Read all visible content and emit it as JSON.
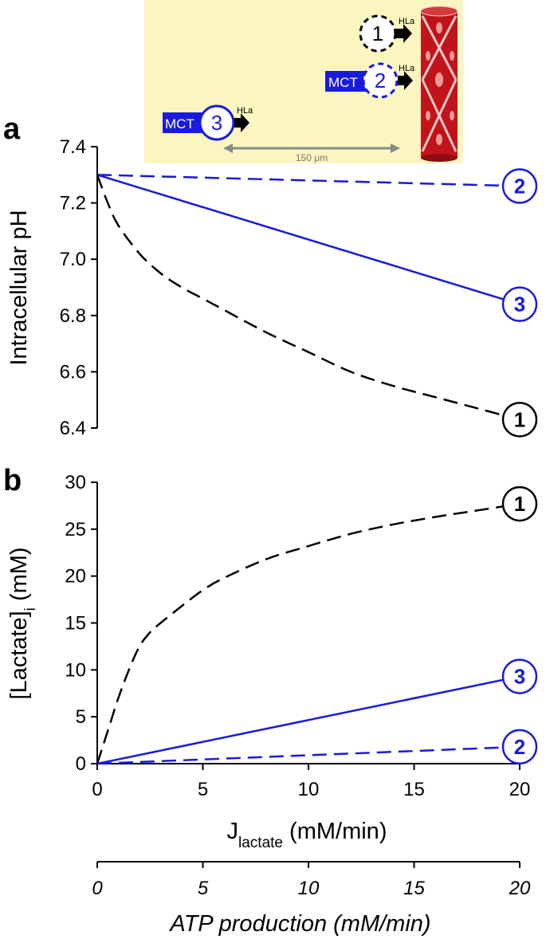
{
  "colors": {
    "blue": "#1a1adc",
    "black": "#000000",
    "inset_bg": "#fbf6c0",
    "vessel": "#c0141a",
    "arrow_gray": "#8a8a8a"
  },
  "inset": {
    "mct_label": "MCT",
    "hla_label": "HLa",
    "scale_label": "150 μm",
    "cells": [
      {
        "num": "1",
        "color": "#000000",
        "dashed": true,
        "mct": false
      },
      {
        "num": "2",
        "color": "#1a1adc",
        "dashed": true,
        "mct": true
      },
      {
        "num": "3",
        "color": "#1a1adc",
        "dashed": false,
        "mct": true
      }
    ]
  },
  "chart_data": [
    {
      "panel": "a",
      "type": "line",
      "ylabel": "Intracellular pH",
      "ylim": [
        6.4,
        7.4
      ],
      "yticks": [
        "6.4",
        "6.6",
        "6.8",
        "7.0",
        "7.2",
        "7.4"
      ],
      "xlim": [
        0,
        20
      ],
      "series": [
        {
          "name": "2",
          "style": "dashed",
          "color": "#1a1adc",
          "x": [
            0,
            20
          ],
          "y": [
            7.3,
            7.26
          ]
        },
        {
          "name": "3",
          "style": "solid",
          "color": "#1a1adc",
          "x": [
            0,
            20
          ],
          "y": [
            7.3,
            6.84
          ]
        },
        {
          "name": "1",
          "style": "dashed",
          "color": "#000000",
          "x": [
            0,
            0.5,
            1,
            2,
            3,
            4,
            5,
            6,
            8,
            10,
            12,
            14,
            16,
            18,
            20
          ],
          "y": [
            7.3,
            7.2,
            7.12,
            7.02,
            6.95,
            6.9,
            6.86,
            6.82,
            6.74,
            6.67,
            6.6,
            6.55,
            6.51,
            6.47,
            6.43
          ]
        }
      ]
    },
    {
      "panel": "b",
      "type": "line",
      "ylabel_main": "[Lactate]",
      "ylabel_sub": "i",
      "ylabel_unit": " (mM)",
      "ylim": [
        0,
        30
      ],
      "yticks": [
        "0",
        "5",
        "10",
        "15",
        "20",
        "25",
        "30"
      ],
      "xlim": [
        0,
        20
      ],
      "xticks": [
        "0",
        "5",
        "10",
        "15",
        "20"
      ],
      "xlabel_main": "J",
      "xlabel_sub": "lactate",
      "xlabel_unit": " (mM/min)",
      "series": [
        {
          "name": "1",
          "style": "dashed",
          "color": "#000000",
          "x": [
            0,
            0.5,
            1,
            1.5,
            2,
            2.5,
            3,
            4,
            5,
            6,
            8,
            10,
            12,
            14,
            16,
            18,
            20
          ],
          "y": [
            0,
            3.5,
            7,
            10,
            12.5,
            14,
            15,
            16.8,
            18.5,
            19.8,
            21.8,
            23.2,
            24.5,
            25.5,
            26.3,
            27,
            27.7
          ]
        },
        {
          "name": "3",
          "style": "solid",
          "color": "#1a1adc",
          "x": [
            0,
            20
          ],
          "y": [
            0,
            9.3
          ]
        },
        {
          "name": "2",
          "style": "dashed",
          "color": "#1a1adc",
          "x": [
            0,
            20
          ],
          "y": [
            0,
            1.8
          ]
        }
      ]
    }
  ],
  "atp_axis": {
    "ticks": [
      "0",
      "5",
      "10",
      "15",
      "20"
    ],
    "label": "ATP production (mM/min)"
  }
}
